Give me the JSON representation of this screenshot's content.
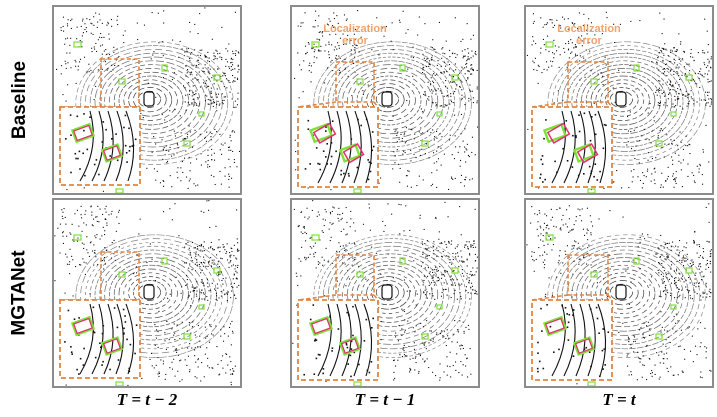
{
  "row_labels": [
    "Baseline",
    "MGTANet"
  ],
  "column_labels": [
    "T = t − 2",
    "T = t − 1",
    "T = t"
  ],
  "annotation": {
    "line1": "Localization",
    "line2": "error"
  },
  "colors": {
    "panel_border": "#8c8c8c",
    "zoom_border": "#e3843f",
    "annotation_text": "#f0a36a",
    "ground_truth_box": "#7ee03a",
    "prediction_box": "#e0336a",
    "points": "#111111"
  },
  "icons": [
    "ego-vehicle-icon"
  ]
}
